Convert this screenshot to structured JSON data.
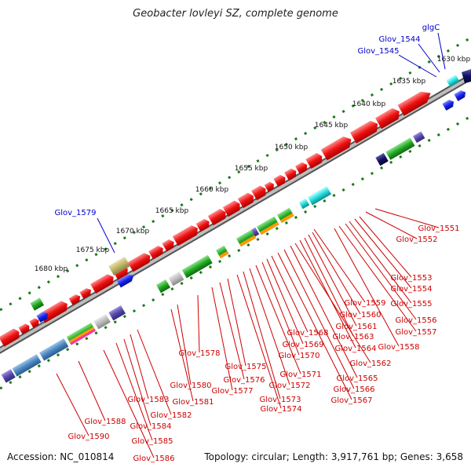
{
  "title": "Geobacter lovleyi SZ, complete genome",
  "footer": {
    "accession": "Accession: NC_010814",
    "summary": "Topology: circular; Length: 3,917,761 bp; Genes: 3,658"
  },
  "colors": {
    "outer_gene_label": "#0000cc",
    "inner_gene_label": "#cc0000",
    "tick": "#1a7a1a",
    "backbone": "#888888"
  },
  "ticks": [
    {
      "label": "1630 kbp",
      "position": 1630
    },
    {
      "label": "1635 kbp",
      "position": 1635
    },
    {
      "label": "1640 kbp",
      "position": 1640
    },
    {
      "label": "1645 kbp",
      "position": 1645
    },
    {
      "label": "1650 kbp",
      "position": 1650
    },
    {
      "label": "1655 kbp",
      "position": 1655
    },
    {
      "label": "1660 kbp",
      "position": 1660
    },
    {
      "label": "1665 kbp",
      "position": 1665
    },
    {
      "label": "1670 kbp",
      "position": 1670
    },
    {
      "label": "1675 kbp",
      "position": 1675
    },
    {
      "label": "1680 kbp",
      "position": 1680
    }
  ],
  "outer_gene_labels": [
    "glgC",
    "Glov_1544",
    "Glov_1545",
    "Glov_1579"
  ],
  "inner_gene_labels": [
    "Glov_1551",
    "Glov_1552",
    "Glov_1553",
    "Glov_1554",
    "Glov_1555",
    "Glov_1556",
    "Glov_1557",
    "Glov_1558",
    "Glov_1559",
    "Glov_1560",
    "Glov_1561",
    "Glov_1563",
    "Glov_1564",
    "Glov_1562",
    "Glov_1565",
    "Glov_1566",
    "Glov_1567",
    "Glov_1568",
    "Glov_1569",
    "Glov_1570",
    "Glov_1571",
    "Glov_1572",
    "Glov_1573",
    "Glov_1574",
    "Glov_1575",
    "Glov_1576",
    "Glov_1577",
    "Glov_1578",
    "Glov_1580",
    "Glov_1581",
    "Glov_1582",
    "Glov_1583",
    "Glov_1584",
    "Glov_1585",
    "Glov_1586",
    "Glov_1588",
    "Glov_1590"
  ]
}
